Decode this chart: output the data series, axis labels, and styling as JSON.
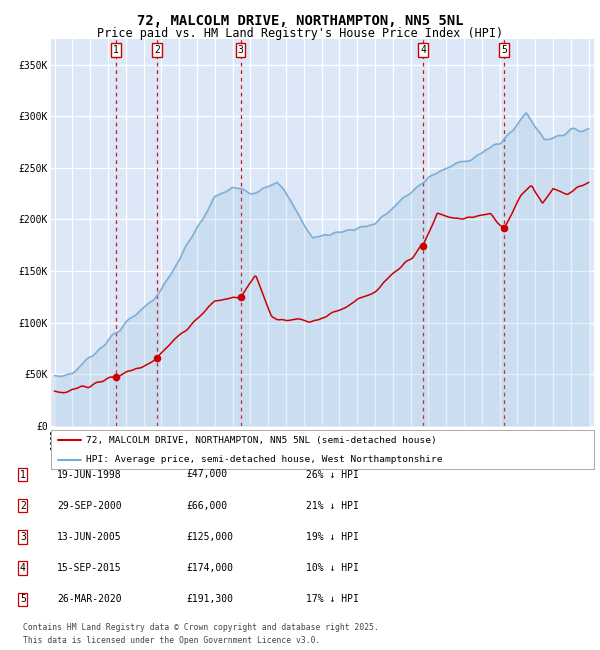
{
  "title": "72, MALCOLM DRIVE, NORTHAMPTON, NN5 5NL",
  "subtitle": "Price paid vs. HM Land Registry's House Price Index (HPI)",
  "title_fontsize": 10,
  "subtitle_fontsize": 8.5,
  "bg_color": "#dce8f8",
  "grid_color": "#ffffff",
  "red_line_color": "#cc0000",
  "blue_line_color": "#7aadd4",
  "ylim": [
    0,
    375000
  ],
  "yticks": [
    0,
    50000,
    100000,
    150000,
    200000,
    250000,
    300000,
    350000
  ],
  "ytick_labels": [
    "£0",
    "£50K",
    "£100K",
    "£150K",
    "£200K",
    "£250K",
    "£300K",
    "£350K"
  ],
  "xstart": 1995,
  "xend": 2025,
  "sale_dates_num": [
    1998.46,
    2000.75,
    2005.45,
    2015.71,
    2020.24
  ],
  "sale_prices": [
    47000,
    66000,
    125000,
    174000,
    191300
  ],
  "sale_labels": [
    "1",
    "2",
    "3",
    "4",
    "5"
  ],
  "transaction_rows": [
    [
      "1",
      "19-JUN-1998",
      "£47,000",
      "26% ↓ HPI"
    ],
    [
      "2",
      "29-SEP-2000",
      "£66,000",
      "21% ↓ HPI"
    ],
    [
      "3",
      "13-JUN-2005",
      "£125,000",
      "19% ↓ HPI"
    ],
    [
      "4",
      "15-SEP-2015",
      "£174,000",
      "10% ↓ HPI"
    ],
    [
      "5",
      "26-MAR-2020",
      "£191,300",
      "17% ↓ HPI"
    ]
  ],
  "legend_line1": "72, MALCOLM DRIVE, NORTHAMPTON, NN5 5NL (semi-detached house)",
  "legend_line2": "HPI: Average price, semi-detached house, West Northamptonshire",
  "footer": "Contains HM Land Registry data © Crown copyright and database right 2025.\nThis data is licensed under the Open Government Licence v3.0."
}
